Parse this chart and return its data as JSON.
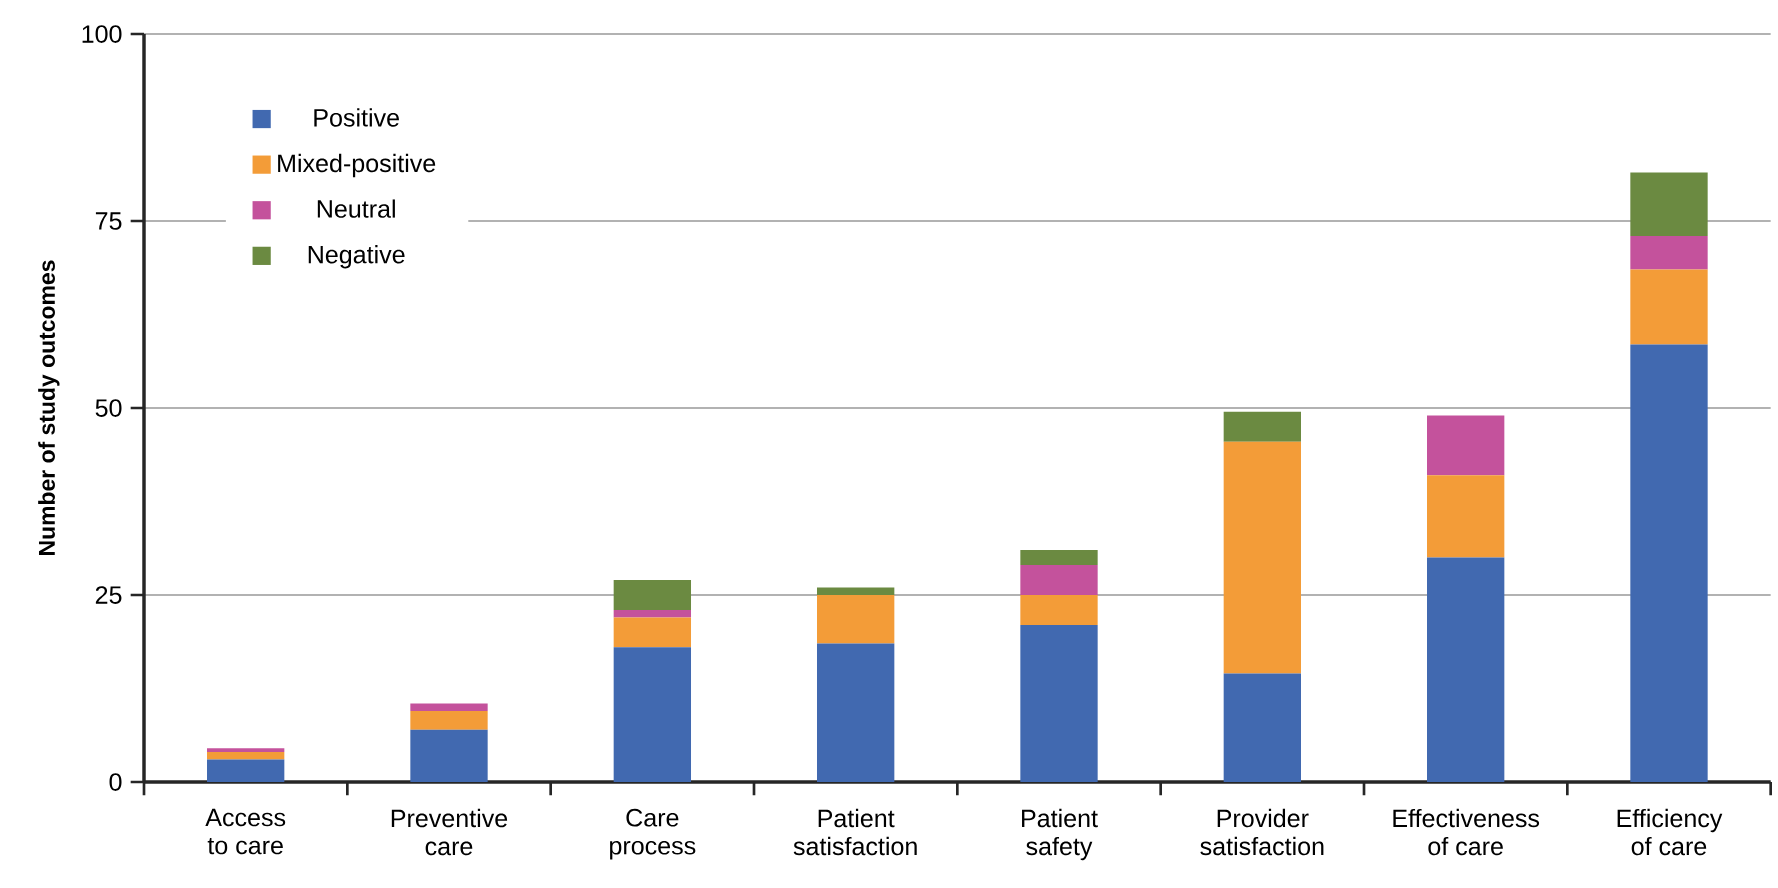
{
  "chart_data": {
    "type": "bar",
    "stacked": true,
    "ylabel": "Number of study outcomes",
    "categories": [
      "Access\nto care",
      "Preventive\ncare",
      "Care\nprocess",
      "Patient\nsatisfaction",
      "Patient\nsafety",
      "Provider\nsatisfaction",
      "Effectiveness\nof care",
      "Efficiency\nof care"
    ],
    "series": [
      {
        "name": "Positive",
        "color": "#4169b0",
        "values": [
          3,
          7,
          18,
          18.5,
          21,
          14.5,
          30,
          58.5
        ]
      },
      {
        "name": "Mixed-positive",
        "color": "#f39c38",
        "values": [
          1,
          2.5,
          4,
          6.5,
          4,
          31,
          11,
          10
        ]
      },
      {
        "name": "Neutral",
        "color": "#c4529c",
        "values": [
          0.5,
          1,
          1,
          0,
          4,
          0,
          8,
          4.5
        ]
      },
      {
        "name": "Negative",
        "color": "#6b8a41",
        "values": [
          0,
          0,
          4,
          1,
          2,
          4,
          0,
          8.5
        ]
      }
    ],
    "ylim": [
      0,
      100
    ],
    "yticks": [
      0,
      25,
      50,
      75,
      100
    ],
    "grid": "y",
    "legend": "top left"
  }
}
